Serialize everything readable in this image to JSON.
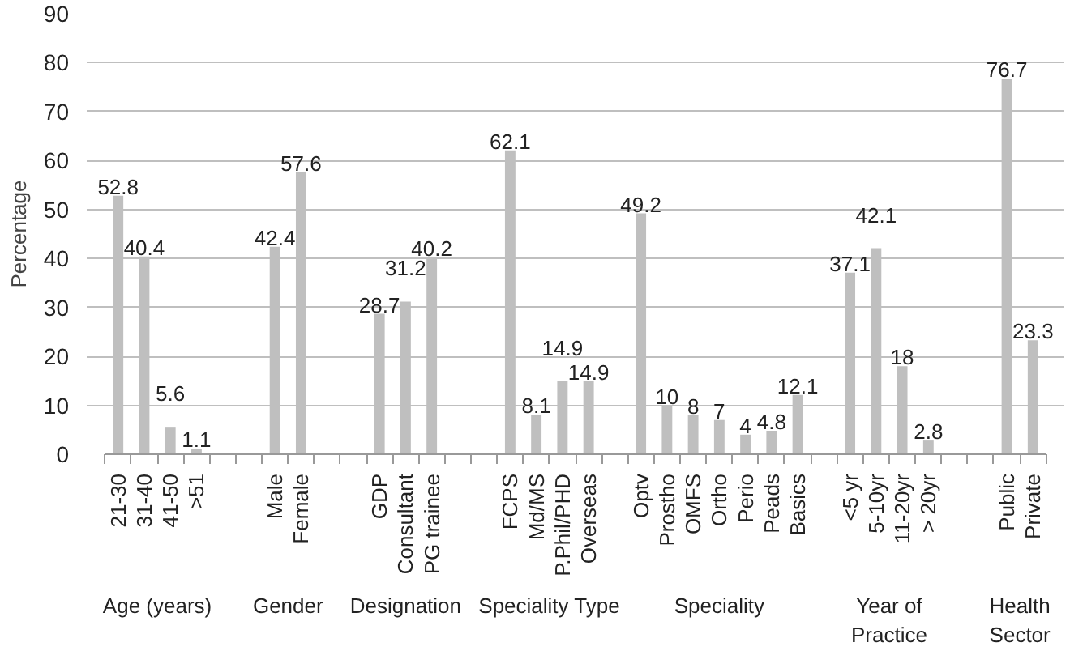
{
  "chart_data": {
    "type": "bar",
    "ylabel": "Percentage",
    "categories": [
      "21-30",
      "31-40",
      "41-50",
      ">51",
      null,
      null,
      "Male",
      "Female",
      null,
      null,
      "GDP",
      "Consultant",
      "PG trainee",
      null,
      null,
      "FCPS",
      "Md/MS",
      "P.Phil/PHD",
      "Overseas",
      null,
      "Optv",
      "Prostho",
      "OMFS",
      "Ortho",
      "Perio",
      "Peads",
      "Basics",
      null,
      "<5 yr",
      "5-10yr",
      "11-20yr",
      "> 20yr",
      null,
      null,
      "Public",
      "Private"
    ],
    "values": [
      52.8,
      40.4,
      5.6,
      1.1,
      null,
      null,
      42.4,
      57.6,
      null,
      null,
      28.7,
      31.2,
      40.2,
      null,
      null,
      62.1,
      8.1,
      14.9,
      14.9,
      null,
      49.2,
      10,
      8,
      7,
      4,
      4.8,
      12.1,
      null,
      37.1,
      42.1,
      18,
      2.8,
      null,
      null,
      76.7,
      23.3
    ],
    "color": "#bfbfbf",
    "ylim": [
      0,
      90
    ],
    "yticks": [
      0,
      10,
      20,
      30,
      40,
      50,
      60,
      70,
      80,
      90
    ],
    "grid": "y",
    "data_labels": true,
    "annotations": [
      "Age (years)",
      "Gender",
      "Designation",
      "Speciality Type",
      "Speciality",
      "Year of\nPractice",
      "Health\nSector"
    ]
  }
}
